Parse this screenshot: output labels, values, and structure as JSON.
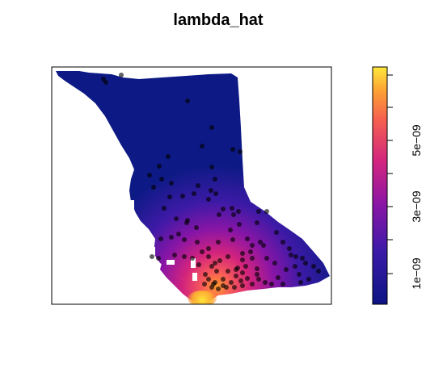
{
  "chart_data": {
    "type": "heatmap",
    "title": "lambda_hat",
    "xlabel": "",
    "ylabel": "",
    "colorbar": {
      "range": [
        3e-10,
        7e-09
      ],
      "ticks": [
        1e-09,
        3e-09,
        5e-09
      ],
      "tick_labels": [
        "1e−09",
        "3e−09",
        "5e−09"
      ],
      "orientation": "vertical",
      "position": "right"
    },
    "colors": {
      "low": "#0d1a85",
      "mid": "#e0287f",
      "high": "#ffe43a",
      "points": "#000000",
      "frame": "#000000"
    },
    "points_style": "semi-transparent black dots",
    "grid": false
  }
}
